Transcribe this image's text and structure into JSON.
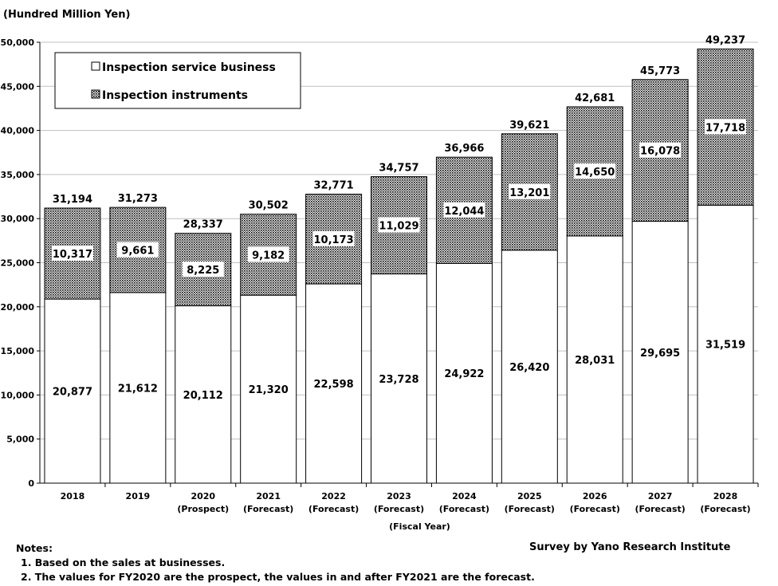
{
  "chart_data": {
    "type": "bar",
    "stacked": true,
    "unit_label": "(Hundred Million Yen)",
    "xlabel": "(Fiscal Year)",
    "ylabel": "",
    "ylim": [
      0,
      50000
    ],
    "ytick_step": 5000,
    "yticks": [
      "0",
      "5,000",
      "10,000",
      "15,000",
      "20,000",
      "25,000",
      "30,000",
      "35,000",
      "40,000",
      "45,000",
      "50,000"
    ],
    "categories": [
      "2018",
      "2019",
      "2020",
      "2021",
      "2022",
      "2023",
      "2024",
      "2025",
      "2026",
      "2027",
      "2028"
    ],
    "category_sublabels": [
      "",
      "",
      "(Prospect)",
      "(Forecast)",
      "(Forecast)",
      "(Forecast)",
      "(Forecast)",
      "(Forecast)",
      "(Forecast)",
      "(Forecast)",
      "(Forecast)"
    ],
    "series": [
      {
        "name": "Inspection service business",
        "values": [
          20877,
          21612,
          20112,
          21320,
          22598,
          23728,
          24922,
          26420,
          28031,
          29695,
          31519
        ],
        "labels": [
          "20,877",
          "21,612",
          "20,112",
          "21,320",
          "22,598",
          "23,728",
          "24,922",
          "26,420",
          "28,031",
          "29,695",
          "31,519"
        ],
        "fill": "#ffffff"
      },
      {
        "name": "Inspection instruments",
        "values": [
          10317,
          9661,
          8225,
          9182,
          10173,
          11029,
          12044,
          13201,
          14650,
          16078,
          17718
        ],
        "labels": [
          "10,317",
          "9,661",
          "8,225",
          "9,182",
          "10,173",
          "11,029",
          "12,044",
          "13,201",
          "14,650",
          "16,078",
          "17,718"
        ],
        "fill": "pattern-dots"
      }
    ],
    "totals": [
      31194,
      31273,
      28337,
      30502,
      32771,
      34757,
      36966,
      39621,
      42681,
      45773,
      49237
    ],
    "total_labels": [
      "31,194",
      "31,273",
      "28,337",
      "30,502",
      "32,771",
      "34,757",
      "36,966",
      "39,621",
      "42,681",
      "45,773",
      "49,237"
    ],
    "legend_position": "top-left",
    "grid": true
  },
  "notes": {
    "heading": "Notes:",
    "items": [
      "1. Based on the sales at businesses.",
      "2. The values for FY2020 are the prospect, the values in and after FY2021 are the forecast."
    ]
  },
  "source": "Survey by Yano Research Institute",
  "colors": {
    "bar_border": "#000000",
    "grid": "#c0c0c0",
    "pattern_dot": "#000000"
  }
}
